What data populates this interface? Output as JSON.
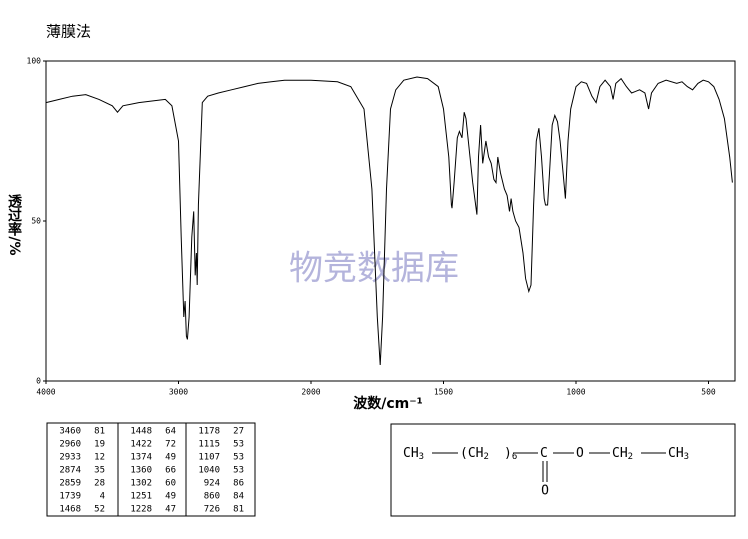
{
  "chart_data": {
    "type": "line",
    "title": "薄膜法",
    "x_label": "波数/cm⁻¹",
    "y_label": "透过率/%",
    "watermark": "物竞数据库",
    "color": "#000000",
    "xlim": [
      4000,
      400
    ],
    "x_scale_break": 2000,
    "x_scale_factor": 2,
    "xticks": [
      4000,
      3000,
      2000,
      1500,
      1000,
      500
    ],
    "ylim": [
      0,
      100
    ],
    "yticks": [
      0,
      50,
      100
    ],
    "x": [
      4000,
      3900,
      3800,
      3700,
      3600,
      3500,
      3460,
      3420,
      3300,
      3200,
      3100,
      3050,
      3000,
      2980,
      2960,
      2950,
      2940,
      2933,
      2920,
      2900,
      2885,
      2874,
      2865,
      2859,
      2850,
      2820,
      2780,
      2700,
      2600,
      2500,
      2400,
      2300,
      2200,
      2100,
      2000,
      1900,
      1850,
      1800,
      1770,
      1750,
      1739,
      1730,
      1715,
      1700,
      1680,
      1650,
      1600,
      1560,
      1520,
      1500,
      1480,
      1470,
      1468,
      1460,
      1448,
      1440,
      1430,
      1422,
      1415,
      1400,
      1390,
      1374,
      1368,
      1360,
      1352,
      1340,
      1330,
      1320,
      1310,
      1302,
      1295,
      1285,
      1270,
      1260,
      1251,
      1245,
      1238,
      1228,
      1215,
      1200,
      1190,
      1178,
      1170,
      1160,
      1150,
      1140,
      1130,
      1120,
      1115,
      1107,
      1100,
      1090,
      1080,
      1070,
      1060,
      1050,
      1040,
      1030,
      1020,
      1000,
      980,
      960,
      940,
      924,
      910,
      890,
      870,
      860,
      850,
      830,
      810,
      790,
      760,
      740,
      726,
      715,
      690,
      660,
      620,
      600,
      580,
      560,
      540,
      520,
      500,
      480,
      460,
      440,
      420,
      410
    ],
    "values": [
      87,
      88,
      89,
      89.5,
      88,
      86,
      84,
      86,
      87,
      87.5,
      88,
      86,
      75,
      45,
      20,
      25,
      14,
      13,
      20,
      45,
      53,
      33,
      40,
      30,
      55,
      87,
      89,
      90,
      91,
      92,
      93,
      93.5,
      94,
      94,
      94,
      93.5,
      92,
      85,
      60,
      20,
      5,
      20,
      60,
      85,
      91,
      94,
      95,
      94.5,
      92,
      85,
      70,
      55,
      54,
      62,
      76,
      78,
      76,
      84,
      82,
      70,
      62,
      52,
      70,
      80,
      68,
      75,
      70,
      68,
      63,
      62,
      70,
      65,
      60,
      58,
      53,
      57,
      53,
      50,
      48,
      40,
      32,
      28,
      30,
      55,
      75,
      79,
      70,
      57,
      55,
      55,
      65,
      80,
      83,
      81,
      75,
      66,
      57,
      75,
      85,
      92,
      93.5,
      93,
      89,
      87,
      92,
      94,
      92,
      88,
      93,
      94.5,
      92,
      90,
      91,
      90,
      85,
      90,
      93,
      94,
      93,
      93.5,
      92,
      91,
      93,
      94,
      93.5,
      92,
      88,
      82,
      70,
      62
    ]
  },
  "peak_table": {
    "rows": [
      [
        3460,
        81
      ],
      [
        2960,
        19
      ],
      [
        2933,
        12
      ],
      [
        2874,
        35
      ],
      [
        2859,
        28
      ],
      [
        1739,
        4
      ],
      [
        1468,
        52
      ],
      [
        1448,
        64
      ],
      [
        1422,
        72
      ],
      [
        1374,
        49
      ],
      [
        1360,
        66
      ],
      [
        1302,
        60
      ],
      [
        1251,
        49
      ],
      [
        1228,
        47
      ],
      [
        1178,
        27
      ],
      [
        1115,
        53
      ],
      [
        1107,
        53
      ],
      [
        1040,
        53
      ],
      [
        924,
        86
      ],
      [
        860,
        84
      ],
      [
        726,
        81
      ]
    ]
  },
  "formula": {
    "groups": [
      {
        "main": "CH",
        "sub": "3"
      },
      {
        "main": "(CH",
        "sub": "2"
      },
      {
        "main": ")",
        "sub": "6"
      },
      {
        "main": "C",
        "sub": ""
      },
      {
        "main": "O",
        "sub": ""
      },
      {
        "main": "CH",
        "sub": "2"
      },
      {
        "main": "CH",
        "sub": "3"
      }
    ],
    "carbonyl": "O"
  }
}
